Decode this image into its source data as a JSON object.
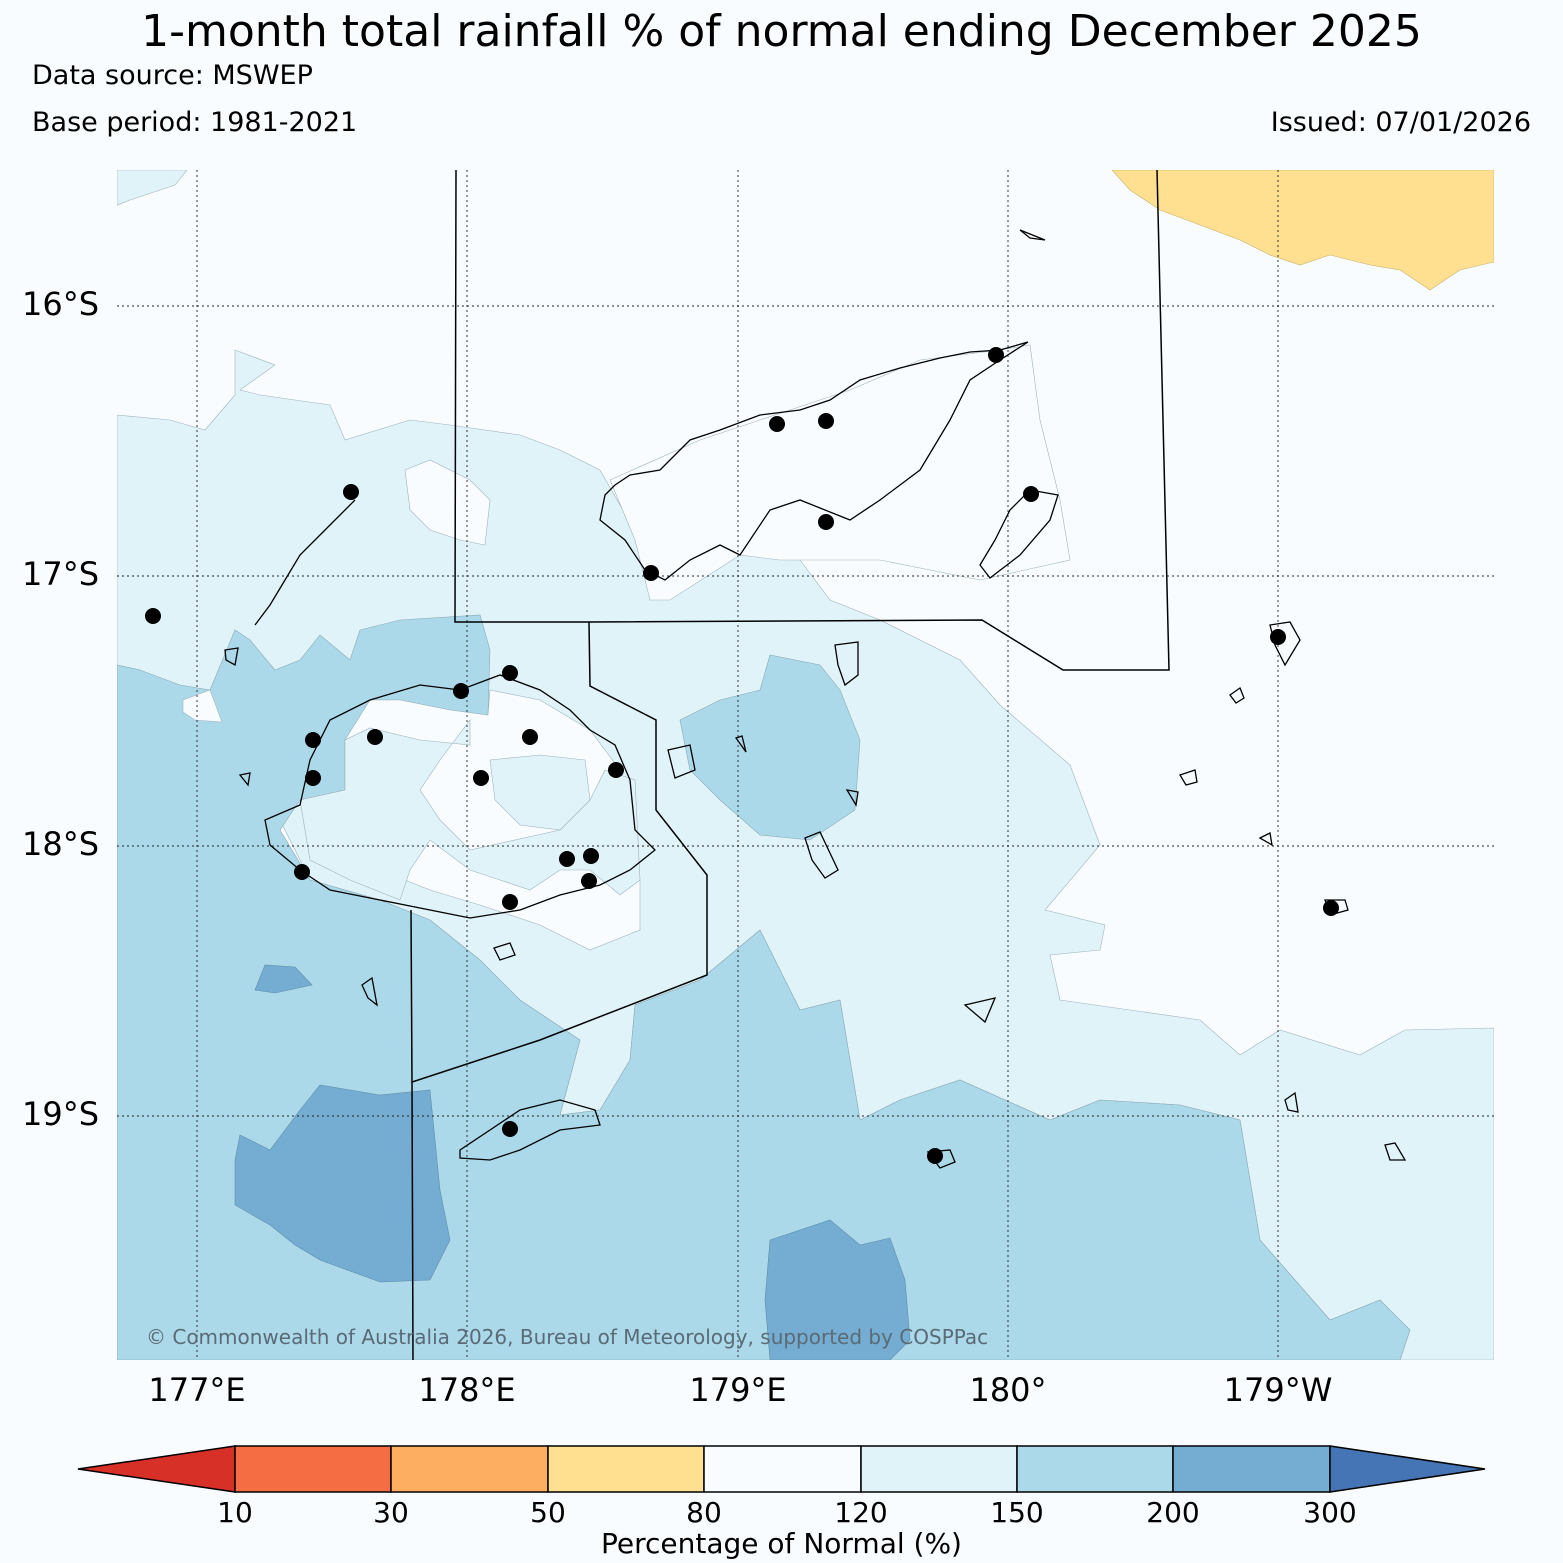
{
  "title": "1-month total rainfall % of normal ending December 2025",
  "data_source": "Data source: MSWEP",
  "base_period": "Base period: 1981-2021",
  "issued": "Issued: 07/01/2026",
  "copyright": "© Commonwealth of Australia 2026, Bureau of Meteorology, supported by COSPPac",
  "lat_labels": [
    "16°S",
    "17°S",
    "18°S",
    "19°S"
  ],
  "lon_labels": [
    "177°E",
    "178°E",
    "179°E",
    "180°",
    "179°W"
  ],
  "colorbar": {
    "label": "Percentage of Normal (%)",
    "ticks": [
      "10",
      "30",
      "50",
      "80",
      "120",
      "150",
      "200",
      "300"
    ],
    "colors": {
      "below_10": "#d73027",
      "10_30": "#f46d43",
      "30_50": "#fdae61",
      "50_80": "#fee090",
      "80_120": "#f8fcfe",
      "120_150": "#e0f3f8",
      "150_200": "#abd9e9",
      "200_300": "#74add1",
      "above_300": "#4575b4"
    }
  },
  "station_marker_color": "#000000"
}
